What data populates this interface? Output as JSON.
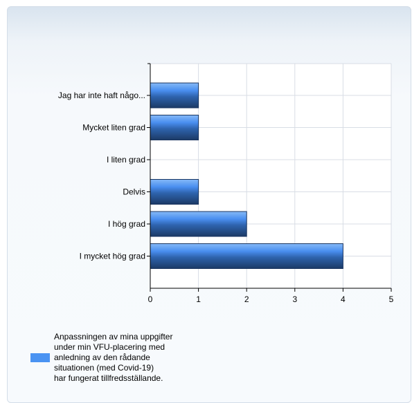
{
  "chart_data": {
    "type": "bar",
    "orientation": "horizontal",
    "categories": [
      "Jag har inte haft någo...",
      "Mycket liten grad",
      "I liten grad",
      "Delvis",
      "I hög grad",
      "I mycket hög grad"
    ],
    "series": [
      {
        "name": "Anpassningen av mina uppgifter\nunder min VFU-placering med\nanledning av den rådande\nsituationen (med Covid-19)\nhar fungerat tillfredsställande.",
        "values": [
          1,
          1,
          0,
          1,
          2,
          4
        ],
        "color": "#4a93f2"
      }
    ],
    "xlim": [
      0,
      5
    ],
    "xticks": [
      "0",
      "1",
      "2",
      "3",
      "4",
      "5"
    ],
    "grid": true,
    "legend": "bottom-left"
  }
}
